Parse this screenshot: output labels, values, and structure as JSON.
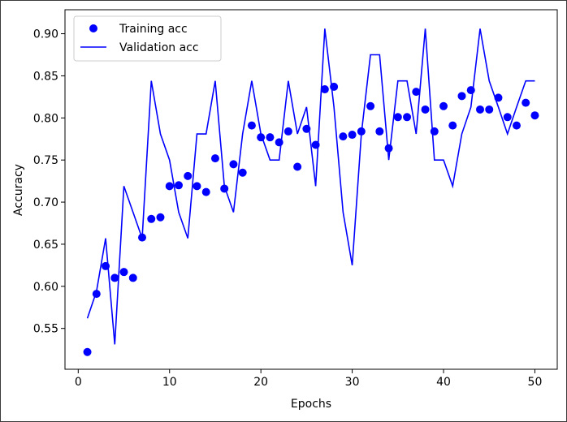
{
  "chart_data": {
    "type": "line",
    "title": "",
    "xlabel": "Epochs",
    "ylabel": "Accuracy",
    "xlim": [
      -1.45,
      52.45
    ],
    "ylim": [
      0.5015,
      0.9285
    ],
    "xticks": [
      0,
      10,
      20,
      30,
      40,
      50
    ],
    "yticks": [
      0.55,
      0.6,
      0.65,
      0.7,
      0.75,
      0.8,
      0.85,
      0.9
    ],
    "xtick_labels": [
      "0",
      "10",
      "20",
      "30",
      "40",
      "50"
    ],
    "ytick_labels": [
      "0.55",
      "0.60",
      "0.65",
      "0.70",
      "0.75",
      "0.80",
      "0.85",
      "0.90"
    ],
    "grid": false,
    "legend_position": "upper-left",
    "x": [
      1,
      2,
      3,
      4,
      5,
      6,
      7,
      8,
      9,
      10,
      11,
      12,
      13,
      14,
      15,
      16,
      17,
      18,
      19,
      20,
      21,
      22,
      23,
      24,
      25,
      26,
      27,
      28,
      29,
      30,
      31,
      32,
      33,
      34,
      35,
      36,
      37,
      38,
      39,
      40,
      41,
      42,
      43,
      44,
      45,
      46,
      47,
      48,
      49,
      50
    ],
    "series": [
      {
        "name": "Training acc",
        "style": "markers",
        "color": "#0000ff",
        "values": [
          0.522,
          0.591,
          0.624,
          0.61,
          0.617,
          0.61,
          0.658,
          0.68,
          0.682,
          0.719,
          0.72,
          0.731,
          0.719,
          0.712,
          0.752,
          0.716,
          0.745,
          0.735,
          0.791,
          0.777,
          0.777,
          0.771,
          0.784,
          0.742,
          0.787,
          0.768,
          0.834,
          0.837,
          0.778,
          0.78,
          0.784,
          0.814,
          0.784,
          0.764,
          0.801,
          0.801,
          0.831,
          0.81,
          0.784,
          0.814,
          0.791,
          0.826,
          0.833,
          0.81,
          0.81,
          0.824,
          0.801,
          0.791,
          0.818,
          0.803
        ]
      },
      {
        "name": "Validation acc",
        "style": "line",
        "color": "#0000ff",
        "values": [
          0.562,
          0.594,
          0.657,
          0.531,
          0.719,
          0.688,
          0.657,
          0.844,
          0.781,
          0.75,
          0.688,
          0.657,
          0.781,
          0.781,
          0.844,
          0.719,
          0.688,
          0.781,
          0.844,
          0.781,
          0.75,
          0.75,
          0.844,
          0.781,
          0.813,
          0.719,
          0.906,
          0.813,
          0.688,
          0.625,
          0.781,
          0.875,
          0.875,
          0.75,
          0.844,
          0.844,
          0.781,
          0.906,
          0.75,
          0.75,
          0.719,
          0.781,
          0.813,
          0.906,
          0.844,
          0.813,
          0.781,
          0.813,
          0.844,
          0.844
        ]
      }
    ]
  }
}
